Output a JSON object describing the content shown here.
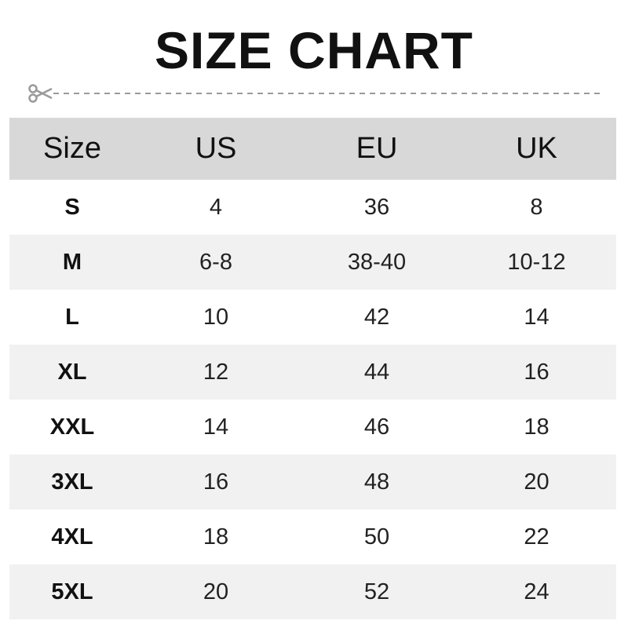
{
  "title": "SIZE CHART",
  "icons": {
    "cut": "scissors-icon"
  },
  "colors": {
    "header_bg": "#d8d8d8",
    "alt_row_bg": "#f1f1f1",
    "dashed_line": "#9a9a9a"
  },
  "chart_data": {
    "type": "table",
    "columns": [
      "Size",
      "US",
      "EU",
      "UK"
    ],
    "rows": [
      [
        "S",
        "4",
        "36",
        "8"
      ],
      [
        "M",
        "6-8",
        "38-40",
        "10-12"
      ],
      [
        "L",
        "10",
        "42",
        "14"
      ],
      [
        "XL",
        "12",
        "44",
        "16"
      ],
      [
        "XXL",
        "14",
        "46",
        "18"
      ],
      [
        "3XL",
        "16",
        "48",
        "20"
      ],
      [
        "4XL",
        "18",
        "50",
        "22"
      ],
      [
        "5XL",
        "20",
        "52",
        "24"
      ]
    ]
  }
}
